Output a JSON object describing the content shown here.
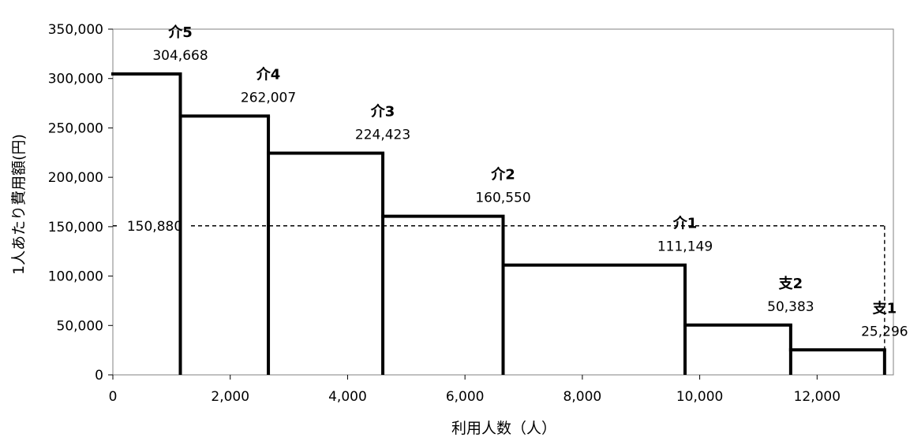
{
  "chart_data": {
    "type": "step",
    "title": "",
    "xlabel": "利用人数（人）",
    "ylabel": "1人あたり費用額(円)",
    "xlim": [
      0,
      13300
    ],
    "ylim": [
      0,
      350000
    ],
    "x_ticks": [
      0,
      2000,
      4000,
      6000,
      8000,
      10000,
      12000
    ],
    "x_tick_labels": [
      "0",
      "2,000",
      "4,000",
      "6,000",
      "8,000",
      "10,000",
      "12,000"
    ],
    "y_ticks": [
      0,
      50000,
      100000,
      150000,
      200000,
      250000,
      300000,
      350000
    ],
    "y_tick_labels": [
      "0",
      "50,000",
      "100,000",
      "150,000",
      "200,000",
      "250,000",
      "300,000",
      "350,000"
    ],
    "grid": false,
    "legend": "none",
    "series": [
      {
        "segments": [
          {
            "category": "介5",
            "x_start": 0,
            "x_end": 1150,
            "value": 304668,
            "value_label": "304,668"
          },
          {
            "category": "介4",
            "x_start": 1150,
            "x_end": 2650,
            "value": 262007,
            "value_label": "262,007"
          },
          {
            "category": "介3",
            "x_start": 2650,
            "x_end": 4600,
            "value": 224423,
            "value_label": "224,423"
          },
          {
            "category": "介2",
            "x_start": 4600,
            "x_end": 6650,
            "value": 160550,
            "value_label": "160,550"
          },
          {
            "category": "介1",
            "x_start": 6650,
            "x_end": 9750,
            "value": 111149,
            "value_label": "111,149"
          },
          {
            "category": "支2",
            "x_start": 9750,
            "x_end": 11550,
            "value": 50383,
            "value_label": "50,383"
          },
          {
            "category": "支1",
            "x_start": 11550,
            "x_end": 13150,
            "value": 25296,
            "value_label": "25,296"
          }
        ]
      }
    ],
    "reference_line": {
      "value": 150880,
      "value_label": "150,880",
      "x_end": 13150,
      "style": "dashed"
    }
  }
}
